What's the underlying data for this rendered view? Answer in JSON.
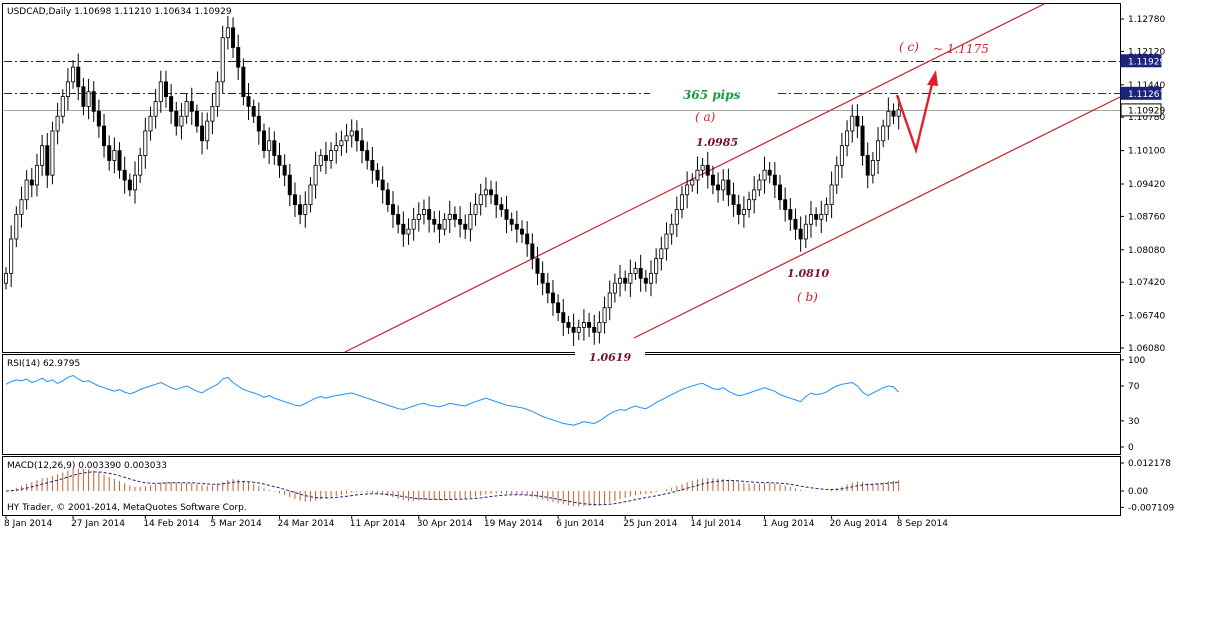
{
  "chart_data": {
    "type": "candlestick",
    "symbol_info": "USDCAD,Daily  1.10698 1.11210 1.10634 1.10929",
    "copyright": "HY Trader, © 2001-2014, MetaQuotes Software Corp.",
    "price_axis": {
      "ticks": [
        "1.12780",
        "1.12120",
        "1.11440",
        "1.10780",
        "1.10100",
        "1.09420",
        "1.08760",
        "1.08080",
        "1.07420",
        "1.06740",
        "1.06080"
      ],
      "ylim": [
        1.06,
        1.13
      ]
    },
    "price_badges": [
      {
        "label": "1.11929",
        "value": 1.11929,
        "style": "dash-dot"
      },
      {
        "label": "1.11267",
        "value": 1.11267,
        "style": "dash-dot"
      },
      {
        "label": "1.10929",
        "value": 1.10929,
        "style": "solid-gray"
      }
    ],
    "date_ticks": [
      {
        "label": "8 Jan 2014",
        "i": 0
      },
      {
        "label": "27 Jan 2014",
        "i": 13
      },
      {
        "label": "14 Feb 2014",
        "i": 27
      },
      {
        "label": "5 Mar 2014",
        "i": 40
      },
      {
        "label": "24 Mar 2014",
        "i": 53
      },
      {
        "label": "11 Apr 2014",
        "i": 67
      },
      {
        "label": "30 Apr 2014",
        "i": 80
      },
      {
        "label": "19 May 2014",
        "i": 93
      },
      {
        "label": "6 Jun 2014",
        "i": 107
      },
      {
        "label": "25 Jun 2014",
        "i": 120
      },
      {
        "label": "14 Jul 2014",
        "i": 133
      },
      {
        "label": "1 Aug 2014",
        "i": 147
      },
      {
        "label": "20 Aug 2014",
        "i": 160
      },
      {
        "label": "8 Sep 2014",
        "i": 173
      }
    ],
    "series_close": [
      1.076,
      1.083,
      1.088,
      1.091,
      1.095,
      1.094,
      1.098,
      1.102,
      1.096,
      1.105,
      1.108,
      1.112,
      1.115,
      1.118,
      1.114,
      1.11,
      1.113,
      1.109,
      1.106,
      1.102,
      1.099,
      1.101,
      1.097,
      1.095,
      1.093,
      1.096,
      1.1,
      1.105,
      1.108,
      1.111,
      1.115,
      1.112,
      1.109,
      1.106,
      1.108,
      1.111,
      1.109,
      1.106,
      1.103,
      1.107,
      1.11,
      1.115,
      1.124,
      1.126,
      1.122,
      1.118,
      1.112,
      1.11,
      1.108,
      1.105,
      1.101,
      1.103,
      1.1,
      1.098,
      1.096,
      1.092,
      1.09,
      1.088,
      1.09,
      1.094,
      1.098,
      1.1,
      1.099,
      1.101,
      1.102,
      1.103,
      1.104,
      1.105,
      1.103,
      1.101,
      1.099,
      1.097,
      1.095,
      1.093,
      1.09,
      1.088,
      1.086,
      1.084,
      1.085,
      1.087,
      1.088,
      1.089,
      1.087,
      1.086,
      1.085,
      1.087,
      1.088,
      1.087,
      1.086,
      1.085,
      1.088,
      1.09,
      1.092,
      1.093,
      1.092,
      1.09,
      1.089,
      1.087,
      1.086,
      1.085,
      1.084,
      1.082,
      1.079,
      1.076,
      1.074,
      1.072,
      1.07,
      1.068,
      1.066,
      1.065,
      1.064,
      1.065,
      1.066,
      1.065,
      1.064,
      1.066,
      1.069,
      1.072,
      1.074,
      1.075,
      1.074,
      1.076,
      1.077,
      1.075,
      1.074,
      1.076,
      1.079,
      1.081,
      1.084,
      1.086,
      1.089,
      1.092,
      1.094,
      1.095,
      1.097,
      1.098,
      1.096,
      1.094,
      1.093,
      1.095,
      1.092,
      1.09,
      1.088,
      1.089,
      1.091,
      1.093,
      1.095,
      1.097,
      1.096,
      1.094,
      1.091,
      1.089,
      1.087,
      1.085,
      1.083,
      1.086,
      1.088,
      1.087,
      1.088,
      1.09,
      1.094,
      1.098,
      1.102,
      1.105,
      1.108,
      1.106,
      1.1,
      1.096,
      1.099,
      1.103,
      1.106,
      1.109,
      1.108,
      1.1093
    ],
    "rsi": {
      "label": "RSI(14) 62.9795",
      "ticks": [
        "100",
        "70",
        "30",
        "0"
      ],
      "ylim": [
        0,
        100
      ],
      "values": [
        72,
        75,
        77,
        76,
        78,
        74,
        76,
        79,
        75,
        77,
        73,
        76,
        80,
        82,
        78,
        75,
        76,
        73,
        70,
        68,
        66,
        64,
        66,
        63,
        61,
        63,
        66,
        68,
        70,
        72,
        74,
        71,
        68,
        66,
        68,
        70,
        67,
        64,
        62,
        66,
        69,
        72,
        78,
        80,
        74,
        70,
        66,
        64,
        62,
        60,
        57,
        59,
        56,
        54,
        52,
        50,
        48,
        47,
        50,
        53,
        56,
        58,
        56,
        58,
        59,
        60,
        61,
        62,
        60,
        58,
        56,
        54,
        52,
        50,
        48,
        46,
        44,
        43,
        45,
        47,
        49,
        50,
        48,
        47,
        46,
        48,
        50,
        49,
        48,
        47,
        50,
        52,
        54,
        56,
        54,
        52,
        50,
        48,
        47,
        46,
        45,
        43,
        41,
        38,
        35,
        33,
        31,
        29,
        27,
        26,
        25,
        27,
        29,
        28,
        27,
        30,
        34,
        38,
        41,
        43,
        42,
        45,
        47,
        45,
        44,
        47,
        51,
        54,
        57,
        60,
        63,
        66,
        68,
        70,
        72,
        73,
        70,
        67,
        66,
        68,
        64,
        61,
        59,
        60,
        62,
        64,
        66,
        68,
        66,
        64,
        60,
        58,
        56,
        54,
        52,
        58,
        62,
        60,
        61,
        63,
        67,
        70,
        72,
        73,
        74,
        70,
        63,
        59,
        62,
        65,
        68,
        70,
        69,
        63
      ]
    },
    "macd": {
      "label": "MACD(12,26,9) 0.003390 0.003033",
      "ticks": [
        "0.012178",
        "0.00",
        "-0.007109"
      ],
      "ylim": [
        -0.0082,
        0.0128
      ]
    },
    "annotations": {
      "c_label": "( c)",
      "target_label": "~ 1.1175",
      "pips_label": "365 pips",
      "a_label": "( a)",
      "a_price": "1.0985",
      "b_price": "1.0810",
      "b_label": "( b)",
      "low_price": "1.0619"
    },
    "colors": {
      "channel": "#cc1f2f",
      "hline": "#1a237e",
      "rsi": "#1e90ff",
      "macd_hist": "#c0622d",
      "macd_signal": "#1a237e",
      "forecast": "#e0202a"
    },
    "grid": false
  }
}
